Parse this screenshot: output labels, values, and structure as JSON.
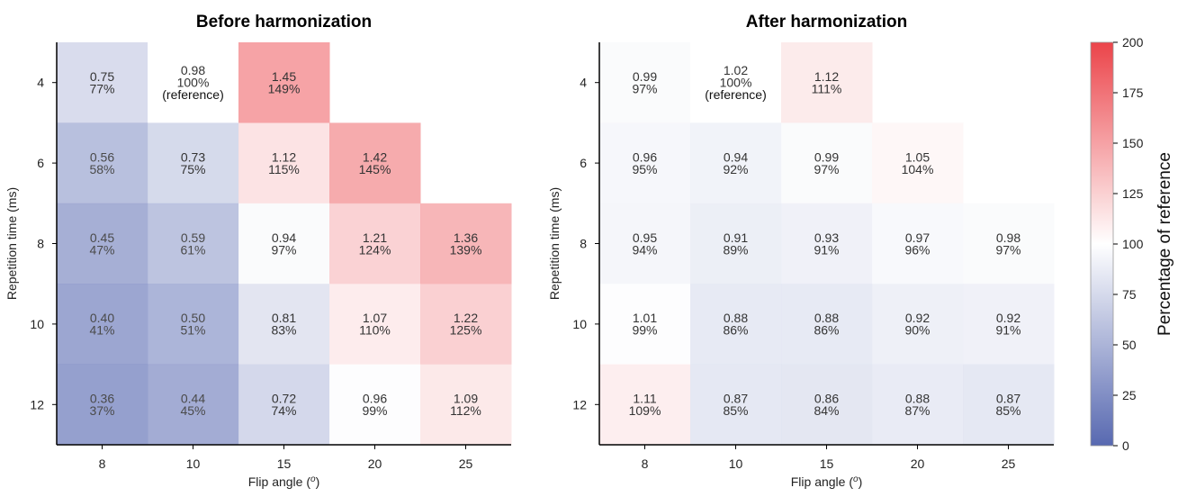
{
  "chart_data": [
    {
      "type": "heatmap",
      "title": "Before harmonization",
      "xlabel": "Flip angle (",
      "xlabel_superscript": "o",
      "xlabel_suffix": ")",
      "ylabel": "Repetition time (ms)",
      "x_categories": [
        "8",
        "10",
        "15",
        "20",
        "25"
      ],
      "y_categories": [
        "4",
        "6",
        "8",
        "10",
        "12"
      ],
      "cells": [
        [
          "0.75\n77%",
          "0.98\n100%\n(reference)",
          "1.45\n149%",
          null,
          null
        ],
        [
          "0.56\n58%",
          "0.73\n75%",
          "1.12\n115%",
          "1.42\n145%",
          null
        ],
        [
          "0.45\n47%",
          "0.59\n61%",
          "0.94\n97%",
          "1.21\n124%",
          "1.36\n139%"
        ],
        [
          "0.40\n41%",
          "0.50\n51%",
          "0.81\n83%",
          "1.07\n110%",
          "1.22\n125%"
        ],
        [
          "0.36\n37%",
          "0.44\n45%",
          "0.72\n74%",
          "0.96\n99%",
          "1.09\n112%"
        ]
      ],
      "percent_values": [
        [
          77,
          100,
          149,
          null,
          null
        ],
        [
          58,
          75,
          115,
          145,
          null
        ],
        [
          47,
          61,
          97,
          124,
          139
        ],
        [
          41,
          51,
          83,
          110,
          125
        ],
        [
          37,
          45,
          74,
          99,
          112
        ]
      ]
    },
    {
      "type": "heatmap",
      "title": "After harmonization",
      "xlabel": "Flip angle (",
      "xlabel_superscript": "o",
      "xlabel_suffix": ")",
      "ylabel": "Repetition time (ms)",
      "x_categories": [
        "8",
        "10",
        "15",
        "20",
        "25"
      ],
      "y_categories": [
        "4",
        "6",
        "8",
        "10",
        "12"
      ],
      "cells": [
        [
          "0.99\n97%",
          "1.02\n100%\n(reference)",
          "1.12\n111%",
          null,
          null
        ],
        [
          "0.96\n95%",
          "0.94\n92%",
          "0.99\n97%",
          "1.05\n104%",
          null
        ],
        [
          "0.95\n94%",
          "0.91\n89%",
          "0.93\n91%",
          "0.97\n96%",
          "0.98\n97%"
        ],
        [
          "1.01\n99%",
          "0.88\n86%",
          "0.88\n86%",
          "0.92\n90%",
          "0.92\n91%"
        ],
        [
          "1.11\n109%",
          "0.87\n85%",
          "0.86\n84%",
          "0.88\n87%",
          "0.87\n85%"
        ]
      ],
      "percent_values": [
        [
          97,
          100,
          111,
          null,
          null
        ],
        [
          95,
          92,
          97,
          104,
          null
        ],
        [
          94,
          89,
          91,
          96,
          97
        ],
        [
          99,
          86,
          86,
          90,
          91
        ],
        [
          109,
          85,
          84,
          87,
          85
        ]
      ]
    }
  ],
  "colorbar": {
    "label": "Percentage of reference",
    "min": 0,
    "max": 200,
    "ticks": [
      "0",
      "25",
      "50",
      "75",
      "100",
      "125",
      "150",
      "175",
      "200"
    ],
    "colors": {
      "low": "#3a4ea3",
      "mid": "#ffffff",
      "high": "#e8232a"
    }
  }
}
